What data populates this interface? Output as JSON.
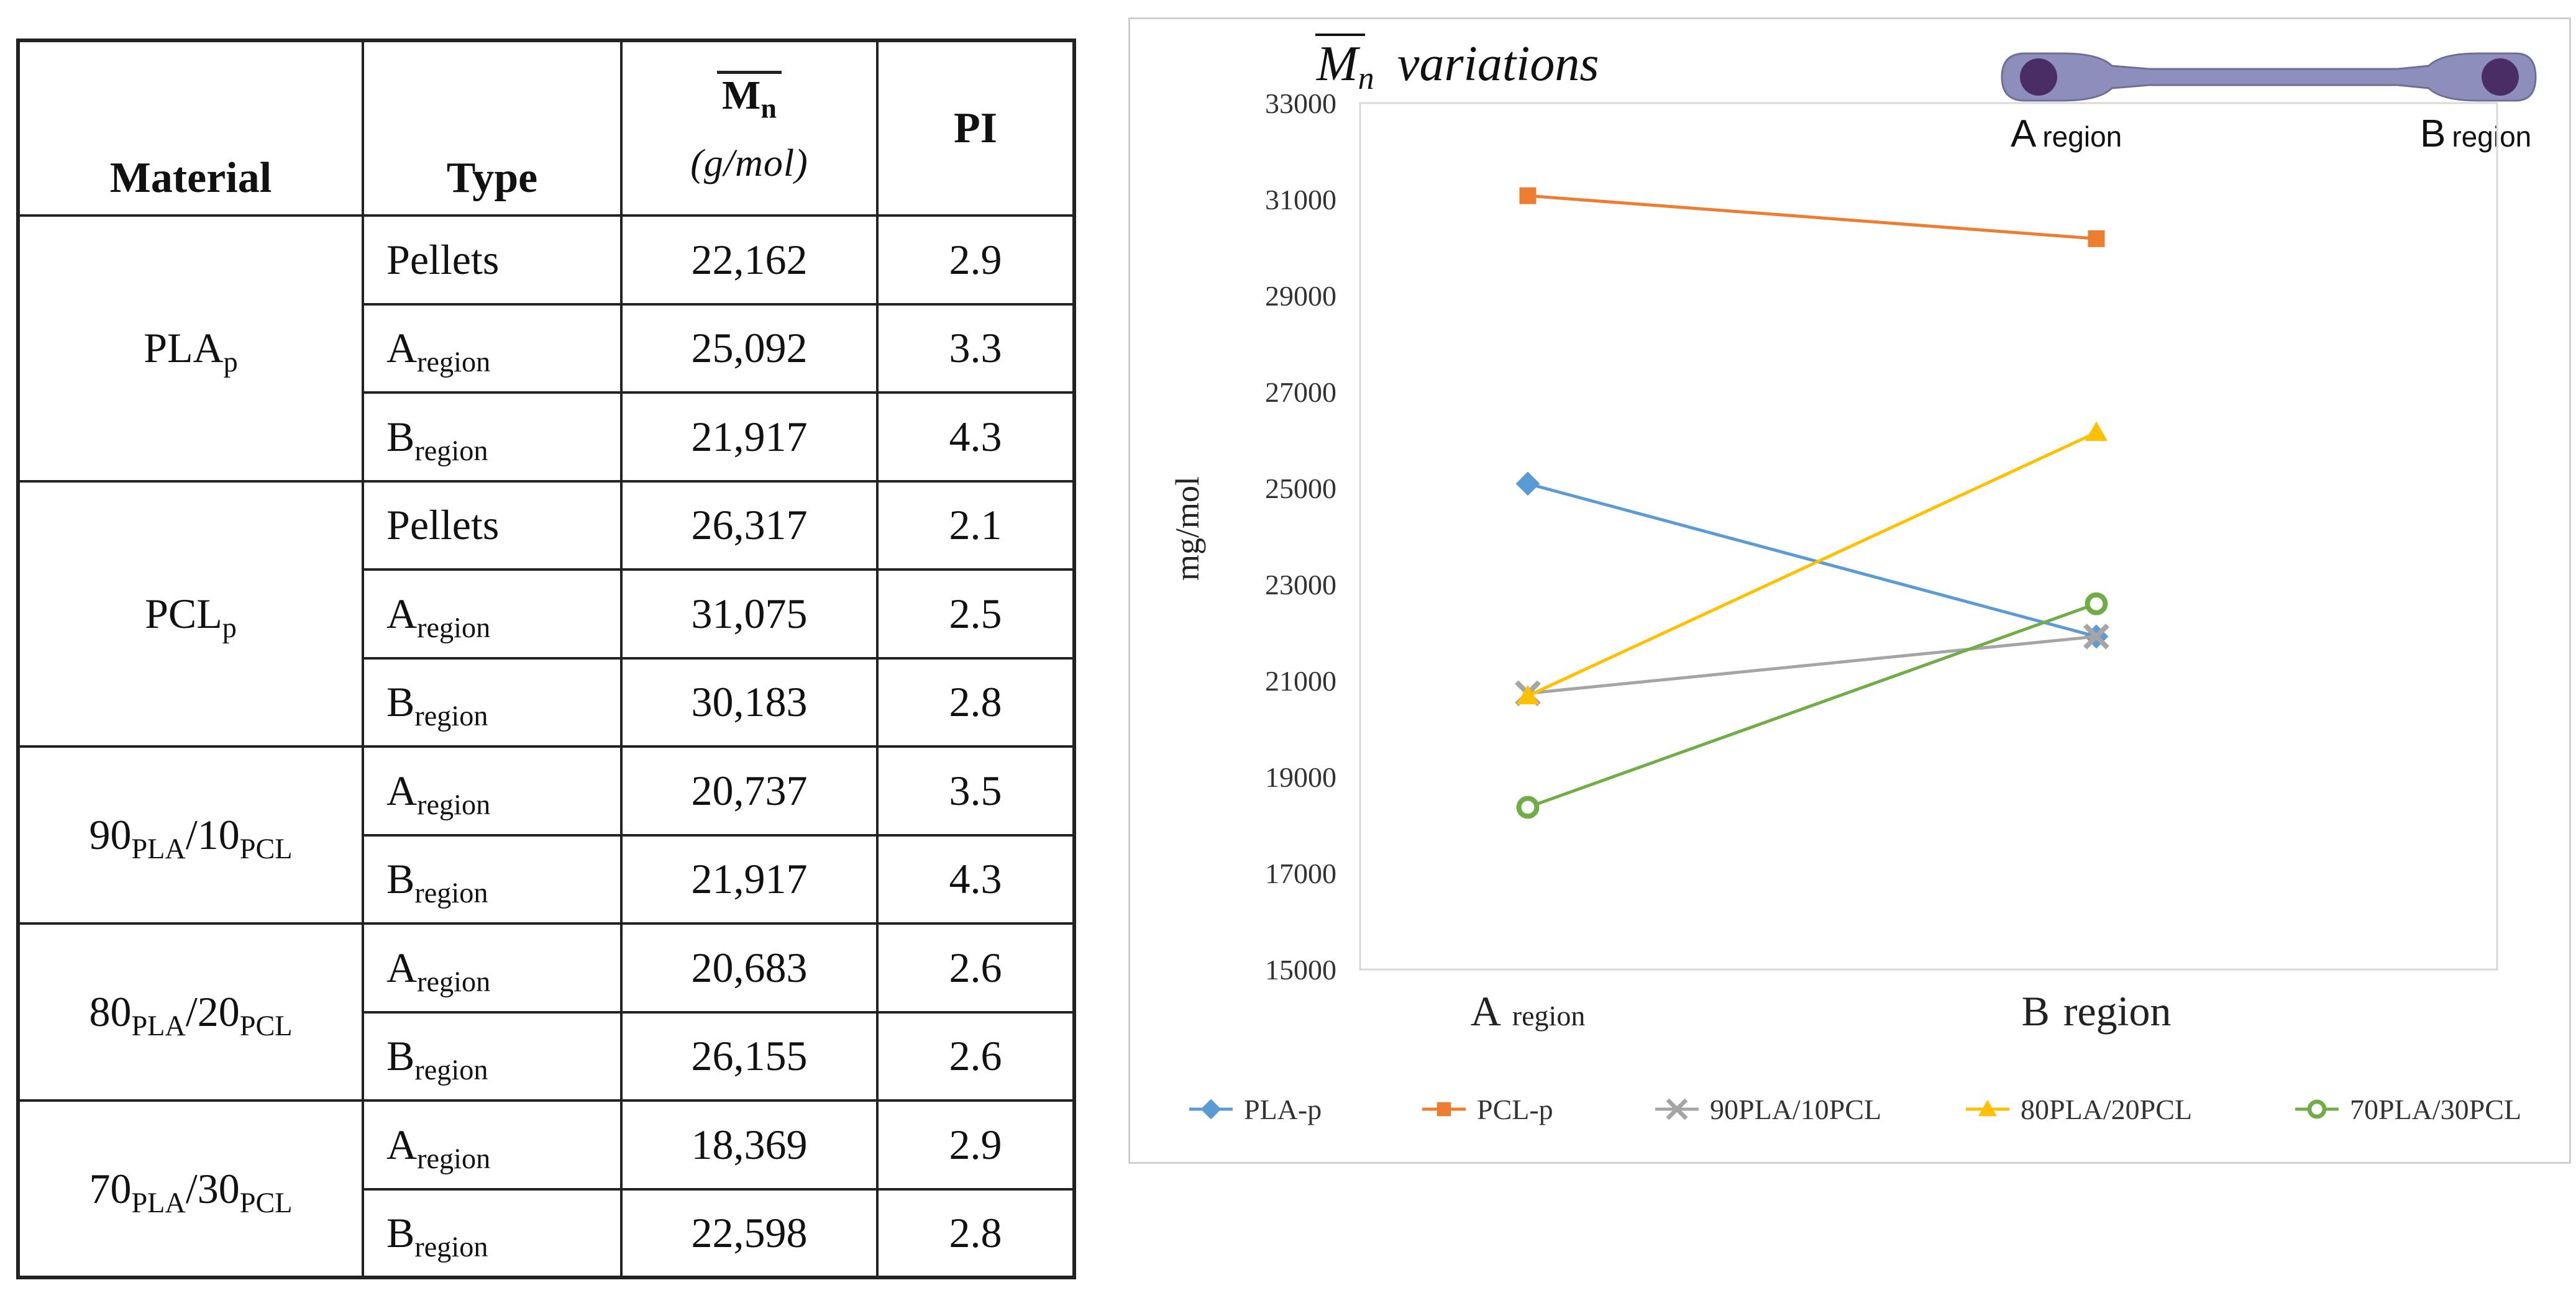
{
  "table": {
    "headers": {
      "material": "Material",
      "type": "Type",
      "mn_symbol": "M",
      "mn_subscript": "n",
      "mn_unit": "(g/mol)",
      "pi": "PI"
    },
    "groups": [
      {
        "material": {
          "base": "PLA",
          "sub": "p"
        },
        "rows": [
          {
            "type": "Pellets",
            "type_sub": "",
            "mn": "22,162",
            "pi": "2.9"
          },
          {
            "type": "A",
            "type_sub": "region",
            "mn": "25,092",
            "pi": "3.3"
          },
          {
            "type": "B",
            "type_sub": "region",
            "mn": "21,917",
            "pi": "4.3"
          }
        ]
      },
      {
        "material": {
          "base": "PCL",
          "sub": "p"
        },
        "rows": [
          {
            "type": "Pellets",
            "type_sub": "",
            "mn": "26,317",
            "pi": "2.1"
          },
          {
            "type": "A",
            "type_sub": "region",
            "mn": "31,075",
            "pi": "2.5"
          },
          {
            "type": "B",
            "type_sub": "region",
            "mn": "30,183",
            "pi": "2.8"
          }
        ]
      },
      {
        "material": {
          "n1": "90",
          "s1": "PLA",
          "n2": "/10",
          "s2": "PCL"
        },
        "rows": [
          {
            "type": "A",
            "type_sub": "region",
            "mn": "20,737",
            "pi": "3.5"
          },
          {
            "type": "B",
            "type_sub": "region",
            "mn": "21,917",
            "pi": "4.3"
          }
        ]
      },
      {
        "material": {
          "n1": "80",
          "s1": "PLA",
          "n2": "/20",
          "s2": "PCL"
        },
        "rows": [
          {
            "type": "A",
            "type_sub": "region",
            "mn": "20,683",
            "pi": "2.6"
          },
          {
            "type": "B",
            "type_sub": "region",
            "mn": "26,155",
            "pi": "2.6"
          }
        ]
      },
      {
        "material": {
          "n1": "70",
          "s1": "PLA",
          "n2": "/30",
          "s2": "PCL"
        },
        "rows": [
          {
            "type": "A",
            "type_sub": "region",
            "mn": "18,369",
            "pi": "2.9"
          },
          {
            "type": "B",
            "type_sub": "region",
            "mn": "22,598",
            "pi": "2.8"
          }
        ]
      }
    ]
  },
  "chart_data": {
    "type": "line",
    "title_symbol": "M",
    "title_subscript": "n",
    "title_suffix": "variations",
    "ylabel": "mg/mol",
    "xlabel": "",
    "ylim": [
      15000,
      33000
    ],
    "yticks": [
      "15000",
      "17000",
      "19000",
      "21000",
      "23000",
      "25000",
      "27000",
      "29000",
      "31000",
      "33000"
    ],
    "ytick_values": [
      15000,
      17000,
      19000,
      21000,
      23000,
      25000,
      27000,
      29000,
      31000,
      33000
    ],
    "categories": [
      {
        "main": "A",
        "sub": "region"
      },
      {
        "main": "B",
        "sub": "region"
      }
    ],
    "grid": false,
    "legend_position": "bottom",
    "series": [
      {
        "name": "PLA-p",
        "values": [
          25092,
          21917
        ],
        "color": "#5b9bd5",
        "marker": "diamond"
      },
      {
        "name": "PCL-p",
        "values": [
          31075,
          30183
        ],
        "color": "#ed7d31",
        "marker": "square"
      },
      {
        "name": "90PLA/10PCL",
        "values": [
          20737,
          21917
        ],
        "color": "#a5a5a5",
        "marker": "x"
      },
      {
        "name": "80PLA/20PCL",
        "values": [
          20683,
          26155
        ],
        "color": "#ffc000",
        "marker": "triangle"
      },
      {
        "name": "70PLA/30PCL",
        "values": [
          18369,
          22598
        ],
        "color": "#70ad47",
        "marker": "circle"
      }
    ],
    "specimen": {
      "label_a": "A",
      "label_b": "B",
      "label_sub": "region",
      "body_color": "#8e8eba",
      "hole_color": "#4a2d63"
    }
  }
}
